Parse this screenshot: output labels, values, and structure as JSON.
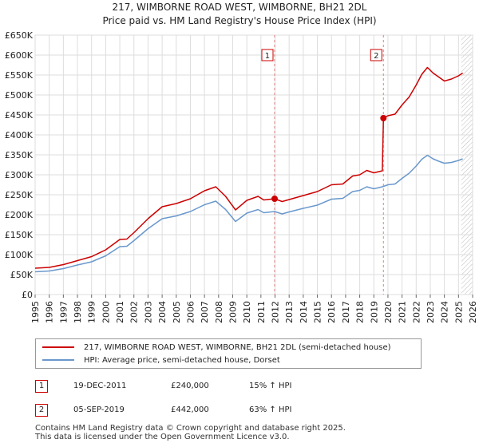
{
  "chart_data": {
    "type": "line",
    "title": "217, WIMBORNE ROAD WEST, WIMBORNE, BH21 2DL",
    "subtitle": "Price paid vs. HM Land Registry's House Price Index (HPI)",
    "xlim": [
      1995,
      2026
    ],
    "ylim": [
      0,
      650000
    ],
    "x_ticks": [
      1995,
      1996,
      1997,
      1998,
      1999,
      2000,
      2001,
      2002,
      2003,
      2004,
      2005,
      2006,
      2007,
      2008,
      2009,
      2010,
      2011,
      2012,
      2013,
      2014,
      2015,
      2016,
      2017,
      2018,
      2019,
      2020,
      2021,
      2022,
      2023,
      2024,
      2025,
      2026
    ],
    "y_ticks": [
      {
        "value": 0,
        "label": "£0"
      },
      {
        "value": 50000,
        "label": "£50K"
      },
      {
        "value": 100000,
        "label": "£100K"
      },
      {
        "value": 150000,
        "label": "£150K"
      },
      {
        "value": 200000,
        "label": "£200K"
      },
      {
        "value": 250000,
        "label": "£250K"
      },
      {
        "value": 300000,
        "label": "£300K"
      },
      {
        "value": 350000,
        "label": "£350K"
      },
      {
        "value": 400000,
        "label": "£400K"
      },
      {
        "value": 450000,
        "label": "£450K"
      },
      {
        "value": 500000,
        "label": "£500K"
      },
      {
        "value": 550000,
        "label": "£550K"
      },
      {
        "value": 600000,
        "label": "£600K"
      },
      {
        "value": 650000,
        "label": "£650K"
      }
    ],
    "grid": true,
    "forecast_from": 2025.2,
    "series": [
      {
        "name": "217, WIMBORNE ROAD WEST, WIMBORNE, BH21 2DL (semi-detached house)",
        "color": "#cc0000",
        "x": [
          1995,
          1996,
          1997,
          1998,
          1999,
          2000,
          2001,
          2001.5,
          2002,
          2003,
          2004,
          2005,
          2006,
          2007,
          2007.8,
          2008.5,
          2009.2,
          2010,
          2010.8,
          2011.2,
          2011.97,
          2012.5,
          2013,
          2014,
          2015,
          2016,
          2016.8,
          2017.5,
          2018,
          2018.5,
          2019,
          2019.6,
          2019.68,
          2020,
          2020.5,
          2021,
          2021.5,
          2022,
          2022.4,
          2022.8,
          2023.2,
          2023.6,
          2024,
          2024.5,
          2025,
          2025.3
        ],
        "values": [
          66000,
          68000,
          75000,
          85000,
          95000,
          112000,
          138000,
          139000,
          155000,
          190000,
          220000,
          228000,
          240000,
          260000,
          270000,
          246000,
          212000,
          236000,
          246000,
          237000,
          240000,
          233000,
          238000,
          248000,
          258000,
          275000,
          277000,
          297000,
          300000,
          311000,
          305000,
          310000,
          442000,
          448000,
          452000,
          475000,
          495000,
          525000,
          552000,
          569000,
          555000,
          545000,
          535000,
          540000,
          548000,
          555000
        ]
      },
      {
        "name": "HPI: Average price, semi-detached house, Dorset",
        "color": "#6a98cc",
        "x": [
          1995,
          1996,
          1997,
          1998,
          1999,
          2000,
          2001,
          2001.5,
          2002,
          2003,
          2004,
          2005,
          2006,
          2007,
          2007.8,
          2008.5,
          2009.2,
          2010,
          2010.8,
          2011.2,
          2011.97,
          2012.5,
          2013,
          2014,
          2015,
          2016,
          2016.8,
          2017.5,
          2018,
          2018.5,
          2019,
          2019.6,
          2019.68,
          2020,
          2020.5,
          2021,
          2021.5,
          2022,
          2022.4,
          2022.8,
          2023.2,
          2023.6,
          2024,
          2024.5,
          2025,
          2025.3
        ],
        "values": [
          57000,
          59000,
          65000,
          74000,
          82000,
          97000,
          120000,
          121000,
          135000,
          165000,
          190000,
          197000,
          208000,
          225000,
          234000,
          213000,
          183000,
          204000,
          213000,
          205000,
          208000,
          202000,
          207000,
          216000,
          224000,
          239000,
          241000,
          258000,
          261000,
          270000,
          265000,
          270000,
          271000,
          275000,
          277000,
          291000,
          304000,
          322000,
          339000,
          349000,
          340000,
          334000,
          329000,
          331000,
          336000,
          340000
        ]
      }
    ],
    "sales": [
      {
        "num": "1",
        "x": 2011.97,
        "y": 240000,
        "date": "19-DEC-2011",
        "price": "£240,000",
        "hpi": "15% ↑ HPI"
      },
      {
        "num": "2",
        "x": 2019.68,
        "y": 442000,
        "date": "05-SEP-2019",
        "price": "£442,000",
        "hpi": "63% ↑ HPI"
      }
    ]
  },
  "footer": {
    "line1": "Contains HM Land Registry data © Crown copyright and database right 2025.",
    "line2": "This data is licensed under the Open Government Licence v3.0."
  }
}
